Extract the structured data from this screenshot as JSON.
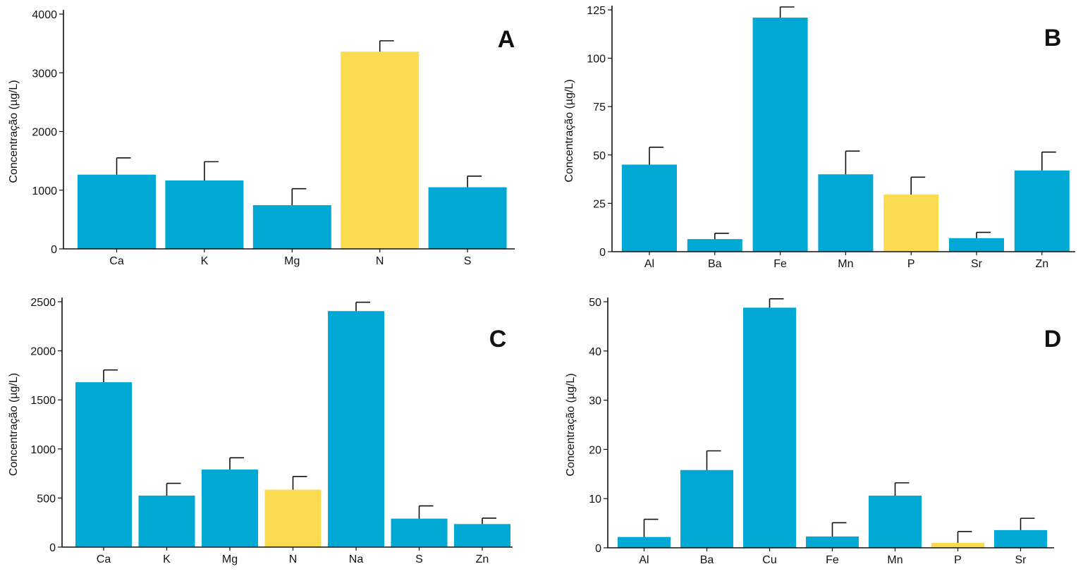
{
  "colors": {
    "primary": "#00a8d4",
    "highlight": "#fbdc50",
    "axis": "#111111"
  },
  "chart_data": [
    {
      "type": "bar",
      "panel_label": "A",
      "ylabel": "Concentração (µg/L)",
      "xlabel": "",
      "categories": [
        "Ca",
        "K",
        "Mg",
        "N",
        "S"
      ],
      "values": [
        1265,
        1165,
        745,
        3360,
        1050
      ],
      "error": [
        285,
        320,
        280,
        185,
        190
      ],
      "highlight": [
        "N"
      ],
      "ylim": [
        0,
        4000
      ],
      "yticks": [
        0,
        1000,
        2000,
        3000,
        4000
      ]
    },
    {
      "type": "bar",
      "panel_label": "B",
      "ylabel": "Concentração (µg/L)",
      "xlabel": "",
      "categories": [
        "Al",
        "Ba",
        "Fe",
        "Mn",
        "P",
        "Sr",
        "Zn"
      ],
      "values": [
        45,
        6.5,
        121,
        40,
        29.5,
        7,
        42
      ],
      "error": [
        9,
        3,
        5.5,
        12,
        9,
        3,
        9.5
      ],
      "highlight": [
        "P"
      ],
      "ylim": [
        0,
        125
      ],
      "yticks": [
        0,
        25,
        50,
        75,
        100,
        125
      ]
    },
    {
      "type": "bar",
      "panel_label": "C",
      "ylabel": "Concentração (µg/L)",
      "xlabel": "",
      "categories": [
        "Ca",
        "K",
        "Mg",
        "N",
        "Na",
        "S",
        "Zn"
      ],
      "values": [
        1680,
        525,
        790,
        585,
        2405,
        290,
        235
      ],
      "error": [
        125,
        125,
        120,
        135,
        90,
        130,
        60
      ],
      "highlight": [
        "N"
      ],
      "ylim": [
        0,
        2500
      ],
      "yticks": [
        0,
        500,
        1000,
        1500,
        2000,
        2500
      ]
    },
    {
      "type": "bar",
      "panel_label": "D",
      "ylabel": "Concentração (µg/L)",
      "xlabel": "",
      "categories": [
        "Al",
        "Ba",
        "Cu",
        "Fe",
        "Mn",
        "P",
        "Sr"
      ],
      "values": [
        2.2,
        15.8,
        48.8,
        2.3,
        10.6,
        1,
        3.6
      ],
      "error": [
        3.6,
        3.9,
        1.8,
        2.8,
        2.6,
        2.3,
        2.4
      ],
      "highlight": [
        "P"
      ],
      "ylim": [
        0,
        50
      ],
      "yticks": [
        0,
        10,
        20,
        30,
        40,
        50
      ]
    }
  ]
}
